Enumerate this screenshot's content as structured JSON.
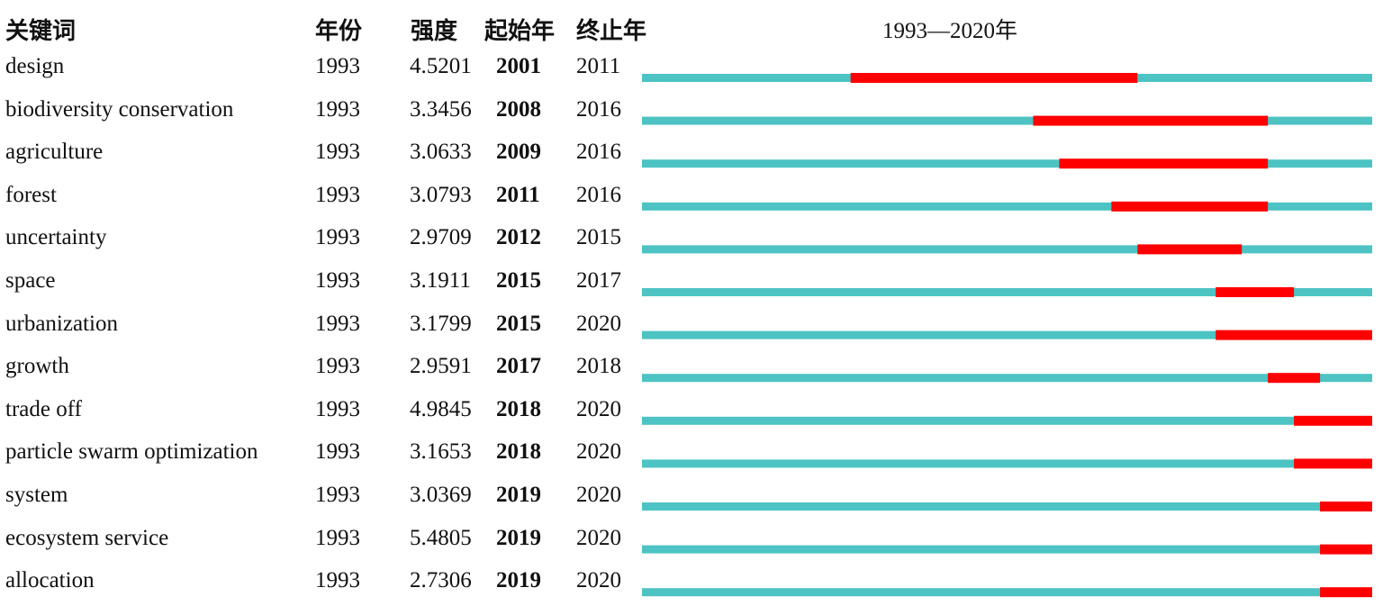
{
  "headers": {
    "keyword": "关键词",
    "year": "年份",
    "strength": "强度",
    "begin": "起始年",
    "end": "终止年",
    "range": "1993—2020年"
  },
  "colors": {
    "baseline": "#4dc3c3",
    "burst": "#ff0000"
  },
  "chart_data": {
    "type": "bar",
    "timeline_start": 1993,
    "timeline_end": 2020,
    "rows": [
      {
        "keyword": "design",
        "year": "1993",
        "strength": "4.5201",
        "begin": "2001",
        "end": "2011"
      },
      {
        "keyword": "biodiversity conservation",
        "year": "1993",
        "strength": "3.3456",
        "begin": "2008",
        "end": "2016"
      },
      {
        "keyword": "agriculture",
        "year": "1993",
        "strength": "3.0633",
        "begin": "2009",
        "end": "2016"
      },
      {
        "keyword": "forest",
        "year": "1993",
        "strength": "3.0793",
        "begin": "2011",
        "end": "2016"
      },
      {
        "keyword": "uncertainty",
        "year": "1993",
        "strength": "2.9709",
        "begin": "2012",
        "end": "2015"
      },
      {
        "keyword": "space",
        "year": "1993",
        "strength": "3.1911",
        "begin": "2015",
        "end": "2017"
      },
      {
        "keyword": "urbanization",
        "year": "1993",
        "strength": "3.1799",
        "begin": "2015",
        "end": "2020"
      },
      {
        "keyword": "growth",
        "year": "1993",
        "strength": "2.9591",
        "begin": "2017",
        "end": "2018"
      },
      {
        "keyword": "trade off",
        "year": "1993",
        "strength": "4.9845",
        "begin": "2018",
        "end": "2020"
      },
      {
        "keyword": "particle swarm optimization",
        "year": "1993",
        "strength": "3.1653",
        "begin": "2018",
        "end": "2020"
      },
      {
        "keyword": "system",
        "year": "1993",
        "strength": "3.0369",
        "begin": "2019",
        "end": "2020"
      },
      {
        "keyword": "ecosystem service",
        "year": "1993",
        "strength": "5.4805",
        "begin": "2019",
        "end": "2020"
      },
      {
        "keyword": "allocation",
        "year": "1993",
        "strength": "2.7306",
        "begin": "2019",
        "end": "2020"
      }
    ]
  }
}
